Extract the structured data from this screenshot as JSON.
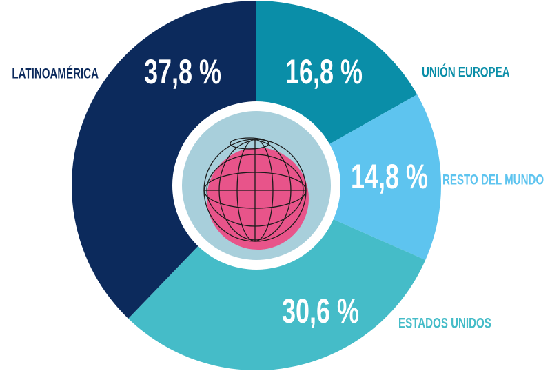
{
  "chart_data": {
    "type": "donut",
    "categories": [
      "UNIÓN EUROPEA",
      "RESTO DEL MUNDO",
      "ESTADOS UNIDOS",
      "LATINOAMÉRICA"
    ],
    "values": [
      16.8,
      14.8,
      30.6,
      37.8
    ],
    "value_labels": [
      "16,8 %",
      "14,8 %",
      "30,6 %",
      "37,8 %"
    ],
    "colors": [
      "#0a8ea8",
      "#5ec4ef",
      "#45bcc8",
      "#0c2a5c"
    ]
  }
}
